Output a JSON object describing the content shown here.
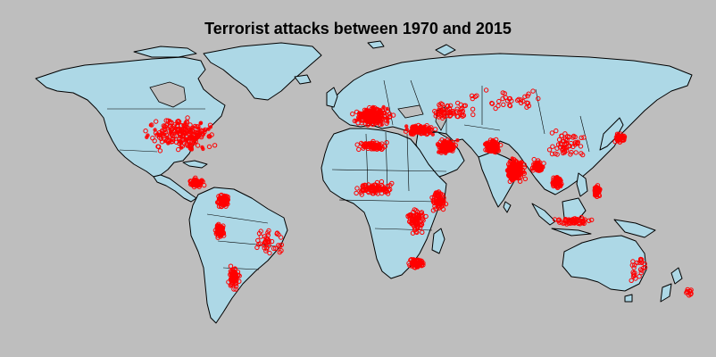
{
  "title": "Terrorist attacks between 1970 and 2015",
  "colors": {
    "background": "#bebebe",
    "land": "#add8e6",
    "outline": "#000000",
    "attack_marker": "#ff0000"
  },
  "map": {
    "projection": "equirectangular",
    "marker": "red circle outline",
    "lon_range": [
      -180,
      180
    ],
    "lat_range": [
      -60,
      85
    ],
    "hotspots": [
      {
        "region": "North America",
        "lon": -95,
        "lat": 38,
        "spread": [
          22,
          10
        ],
        "count": 220
      },
      {
        "region": "Central America",
        "lon": -88,
        "lat": 14,
        "spread": [
          5,
          3
        ],
        "count": 60
      },
      {
        "region": "Colombia",
        "lon": -74,
        "lat": 5,
        "spread": [
          4,
          4
        ],
        "count": 80
      },
      {
        "region": "Peru",
        "lon": -76,
        "lat": -10,
        "spread": [
          3,
          5
        ],
        "count": 70
      },
      {
        "region": "Chile/Argentina",
        "lon": -68,
        "lat": -33,
        "spread": [
          4,
          8
        ],
        "count": 60
      },
      {
        "region": "Brazil",
        "lon": -50,
        "lat": -15,
        "spread": [
          10,
          8
        ],
        "count": 40
      },
      {
        "region": "Western Europe",
        "lon": 5,
        "lat": 47,
        "spread": [
          12,
          6
        ],
        "count": 220
      },
      {
        "region": "Balkans/Turkey",
        "lon": 30,
        "lat": 40,
        "spread": [
          10,
          3
        ],
        "count": 120
      },
      {
        "region": "Middle East",
        "lon": 44,
        "lat": 32,
        "spread": [
          6,
          4
        ],
        "count": 130
      },
      {
        "region": "Caucasus/Russia",
        "lon": 45,
        "lat": 50,
        "spread": [
          15,
          6
        ],
        "count": 60
      },
      {
        "region": "North Africa",
        "lon": 5,
        "lat": 32,
        "spread": [
          10,
          3
        ],
        "count": 80
      },
      {
        "region": "Sahel/West Africa",
        "lon": 5,
        "lat": 11,
        "spread": [
          12,
          4
        ],
        "count": 90
      },
      {
        "region": "Horn of Africa",
        "lon": 40,
        "lat": 5,
        "spread": [
          5,
          6
        ],
        "count": 70
      },
      {
        "region": "Central/East Africa",
        "lon": 28,
        "lat": -5,
        "spread": [
          6,
          8
        ],
        "count": 80
      },
      {
        "region": "Southern Africa",
        "lon": 28,
        "lat": -26,
        "spread": [
          5,
          3
        ],
        "count": 70
      },
      {
        "region": "Afghanistan/Pakistan",
        "lon": 68,
        "lat": 32,
        "spread": [
          5,
          4
        ],
        "count": 150
      },
      {
        "region": "India",
        "lon": 80,
        "lat": 20,
        "spread": [
          6,
          7
        ],
        "count": 200
      },
      {
        "region": "Bangladesh/Myanmar",
        "lon": 92,
        "lat": 22,
        "spread": [
          4,
          4
        ],
        "count": 60
      },
      {
        "region": "Thailand/Indochina",
        "lon": 102,
        "lat": 14,
        "spread": [
          3,
          4
        ],
        "count": 60
      },
      {
        "region": "Philippines",
        "lon": 123,
        "lat": 10,
        "spread": [
          2,
          4
        ],
        "count": 70
      },
      {
        "region": "Indonesia",
        "lon": 110,
        "lat": -5,
        "spread": [
          12,
          2
        ],
        "count": 60
      },
      {
        "region": "Japan/Korea",
        "lon": 135,
        "lat": 36,
        "spread": [
          4,
          3
        ],
        "count": 40
      },
      {
        "region": "China",
        "lon": 108,
        "lat": 33,
        "spread": [
          14,
          8
        ],
        "count": 60
      },
      {
        "region": "Central Asia/Russia",
        "lon": 75,
        "lat": 55,
        "spread": [
          30,
          6
        ],
        "count": 35
      },
      {
        "region": "Australia",
        "lon": 145,
        "lat": -28,
        "spread": [
          8,
          8
        ],
        "count": 25
      },
      {
        "region": "New Zealand",
        "lon": 172,
        "lat": -40,
        "spread": [
          3,
          3
        ],
        "count": 10
      }
    ]
  }
}
